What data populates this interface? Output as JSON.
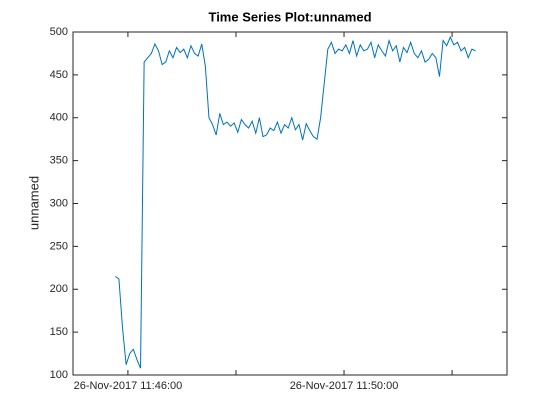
{
  "chart_data": {
    "type": "line",
    "title": "Time Series Plot:unnamed",
    "y_label": "unnamed",
    "x": [
      "2017-11-26T11:45:46",
      "2017-11-26T11:45:50",
      "2017-11-26T11:45:54",
      "2017-11-26T11:45:58",
      "2017-11-26T11:46:02",
      "2017-11-26T11:46:06",
      "2017-11-26T11:46:10",
      "2017-11-26T11:46:14",
      "2017-11-26T11:46:18",
      "2017-11-26T11:46:22",
      "2017-11-26T11:46:26",
      "2017-11-26T11:46:30",
      "2017-11-26T11:46:34",
      "2017-11-26T11:46:38",
      "2017-11-26T11:46:42",
      "2017-11-26T11:46:46",
      "2017-11-26T11:46:50",
      "2017-11-26T11:46:54",
      "2017-11-26T11:46:58",
      "2017-11-26T11:47:02",
      "2017-11-26T11:47:06",
      "2017-11-26T11:47:10",
      "2017-11-26T11:47:14",
      "2017-11-26T11:47:18",
      "2017-11-26T11:47:22",
      "2017-11-26T11:47:26",
      "2017-11-26T11:47:30",
      "2017-11-26T11:47:34",
      "2017-11-26T11:47:38",
      "2017-11-26T11:47:42",
      "2017-11-26T11:47:46",
      "2017-11-26T11:47:50",
      "2017-11-26T11:47:54",
      "2017-11-26T11:47:58",
      "2017-11-26T11:48:02",
      "2017-11-26T11:48:06",
      "2017-11-26T11:48:10",
      "2017-11-26T11:48:14",
      "2017-11-26T11:48:18",
      "2017-11-26T11:48:22",
      "2017-11-26T11:48:26",
      "2017-11-26T11:48:30",
      "2017-11-26T11:48:34",
      "2017-11-26T11:48:38",
      "2017-11-26T11:48:42",
      "2017-11-26T11:48:46",
      "2017-11-26T11:48:50",
      "2017-11-26T11:48:54",
      "2017-11-26T11:48:58",
      "2017-11-26T11:49:02",
      "2017-11-26T11:49:06",
      "2017-11-26T11:49:10",
      "2017-11-26T11:49:14",
      "2017-11-26T11:49:18",
      "2017-11-26T11:49:22",
      "2017-11-26T11:49:26",
      "2017-11-26T11:49:30",
      "2017-11-26T11:49:34",
      "2017-11-26T11:49:38",
      "2017-11-26T11:49:42",
      "2017-11-26T11:49:46",
      "2017-11-26T11:49:50",
      "2017-11-26T11:49:54",
      "2017-11-26T11:49:58",
      "2017-11-26T11:50:02",
      "2017-11-26T11:50:06",
      "2017-11-26T11:50:10",
      "2017-11-26T11:50:14",
      "2017-11-26T11:50:18",
      "2017-11-26T11:50:22",
      "2017-11-26T11:50:26",
      "2017-11-26T11:50:30",
      "2017-11-26T11:50:34",
      "2017-11-26T11:50:38",
      "2017-11-26T11:50:42",
      "2017-11-26T11:50:46",
      "2017-11-26T11:50:50",
      "2017-11-26T11:50:54",
      "2017-11-26T11:50:58",
      "2017-11-26T11:51:02",
      "2017-11-26T11:51:06",
      "2017-11-26T11:51:10",
      "2017-11-26T11:51:14",
      "2017-11-26T11:51:18",
      "2017-11-26T11:51:22",
      "2017-11-26T11:51:26",
      "2017-11-26T11:51:30",
      "2017-11-26T11:51:34",
      "2017-11-26T11:51:38",
      "2017-11-26T11:51:42",
      "2017-11-26T11:51:46",
      "2017-11-26T11:51:50",
      "2017-11-26T11:51:54",
      "2017-11-26T11:51:58",
      "2017-11-26T11:52:02",
      "2017-11-26T11:52:06",
      "2017-11-26T11:52:10",
      "2017-11-26T11:52:14",
      "2017-11-26T11:52:18",
      "2017-11-26T11:52:22",
      "2017-11-26T11:52:26"
    ],
    "series": [
      {
        "name": "unnamed",
        "color": "#0072bd",
        "values": [
          215,
          212,
          155,
          112,
          125,
          130,
          118,
          108,
          465,
          470,
          475,
          486,
          478,
          462,
          465,
          478,
          470,
          482,
          476,
          480,
          470,
          484,
          475,
          472,
          486,
          460,
          400,
          392,
          380,
          405,
          392,
          395,
          390,
          394,
          383,
          398,
          392,
          388,
          396,
          382,
          400,
          378,
          380,
          388,
          385,
          395,
          382,
          392,
          388,
          400,
          386,
          392,
          374,
          393,
          385,
          378,
          375,
          400,
          440,
          480,
          488,
          475,
          480,
          478,
          485,
          475,
          490,
          472,
          485,
          478,
          480,
          488,
          470,
          485,
          478,
          472,
          490,
          478,
          484,
          465,
          482,
          476,
          488,
          475,
          470,
          478,
          465,
          468,
          475,
          470,
          448,
          490,
          484,
          494,
          485,
          488,
          478,
          482,
          470,
          480,
          478
        ]
      }
    ],
    "xlim": [
      "2017-11-26T11:44:59",
      "2017-11-26T11:53:01"
    ],
    "xticks": [
      {
        "value": "2017-11-26T11:46:00",
        "label": "26-Nov-2017 11:46:00"
      },
      {
        "value": "2017-11-26T11:48:00",
        "label": null
      },
      {
        "value": "2017-11-26T11:50:00",
        "label": "26-Nov-2017 11:50:00"
      },
      {
        "value": "2017-11-26T11:52:00",
        "label": null
      }
    ],
    "ylim": [
      100,
      500
    ],
    "yticks": [
      100,
      150,
      200,
      250,
      300,
      350,
      400,
      450,
      500
    ]
  }
}
